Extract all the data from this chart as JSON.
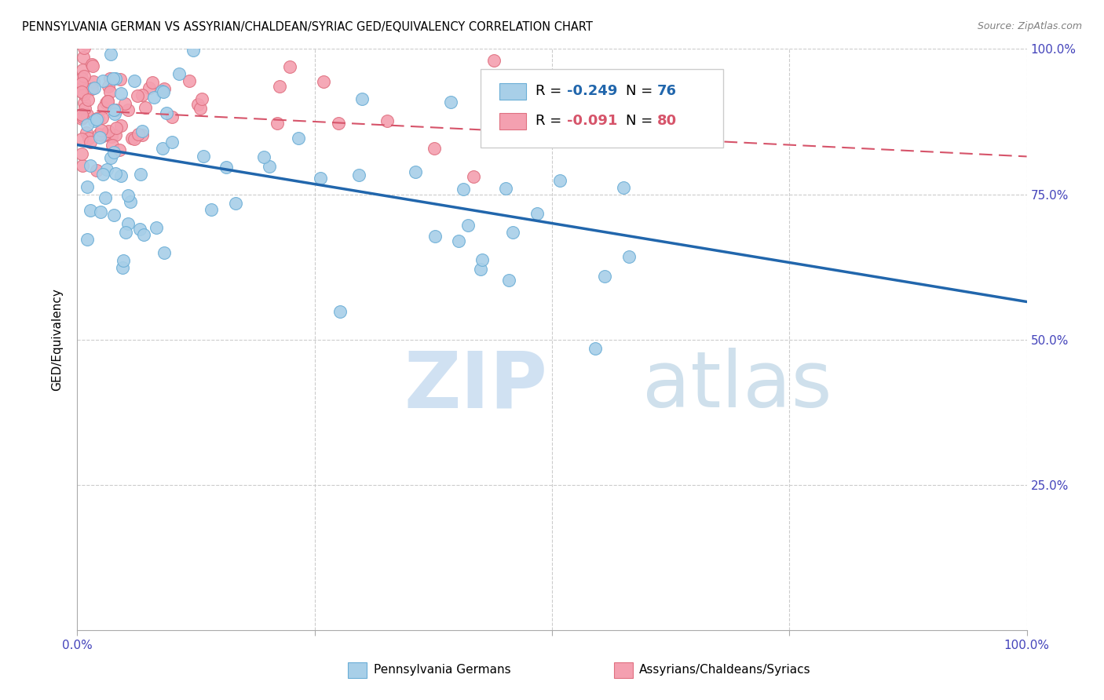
{
  "title": "PENNSYLVANIA GERMAN VS ASSYRIAN/CHALDEAN/SYRIAC GED/EQUIVALENCY CORRELATION CHART",
  "source": "Source: ZipAtlas.com",
  "ylabel": "GED/Equivalency",
  "xlim": [
    0.0,
    1.0
  ],
  "ylim": [
    0.0,
    1.0
  ],
  "blue_color": "#a8cfe8",
  "blue_line_color": "#2166ac",
  "blue_edge_color": "#6baed6",
  "pink_color": "#f4a0b0",
  "pink_line_color": "#d6546a",
  "pink_edge_color": "#e07080",
  "legend_blue_R": "-0.249",
  "legend_blue_N": "76",
  "legend_pink_R": "-0.091",
  "legend_pink_N": "80",
  "blue_trend_y_start": 0.835,
  "blue_trend_y_end": 0.565,
  "pink_trend_y_start": 0.895,
  "pink_trend_y_end": 0.815,
  "grid_color": "#cccccc",
  "axis_label_color": "#4444bb",
  "right_axis_color": "#4444bb",
  "watermark_zip_color": "#c8dcf0",
  "watermark_atlas_color": "#b0cce0"
}
